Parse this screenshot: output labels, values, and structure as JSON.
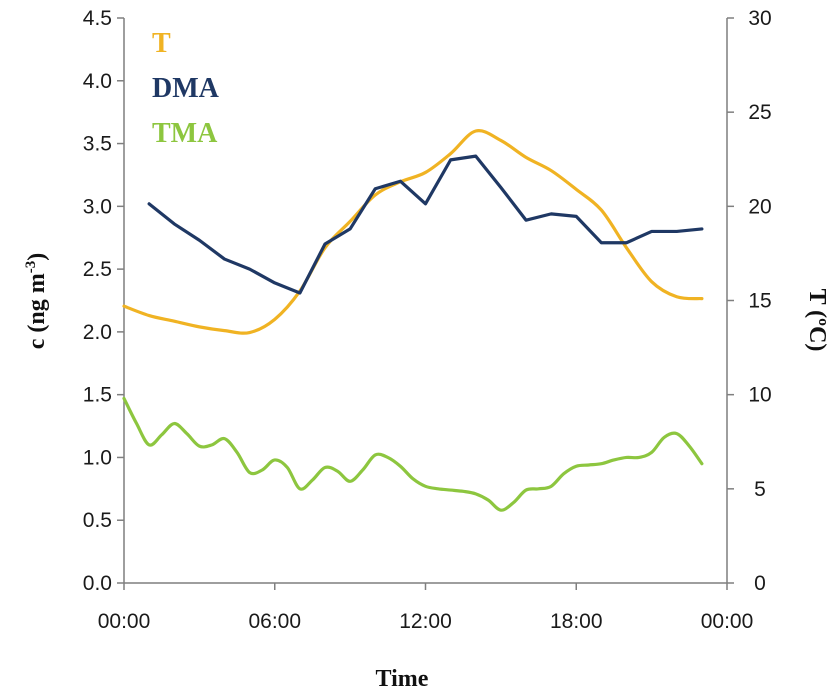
{
  "chart_data": {
    "type": "line",
    "title": "",
    "xlabel": "Time",
    "ylabel_left": "c (ng m⁻³)",
    "ylabel_left_parts": {
      "base": "c (ng m",
      "sup": "-3",
      "close": ")"
    },
    "ylabel_right": "T (ºC)",
    "x_unit": "hours",
    "xlim": [
      0,
      24
    ],
    "x_ticks": [
      0,
      6,
      12,
      18,
      24
    ],
    "x_tick_labels": [
      "00:00",
      "06:00",
      "12:00",
      "18:00",
      "00:00"
    ],
    "ylim_left": [
      0,
      4.5
    ],
    "y_ticks_left": [
      0,
      0.5,
      1,
      1.5,
      2,
      2.5,
      3,
      3.5,
      4,
      4.5
    ],
    "y_tick_labels_left": [
      "0.0",
      "0.5",
      "1.0",
      "1.5",
      "2.0",
      "2.5",
      "3.0",
      "3.5",
      "4.0",
      "4.5"
    ],
    "ylim_right": [
      0,
      30
    ],
    "y_ticks_right": [
      0,
      5,
      10,
      15,
      20,
      25,
      30
    ],
    "y_tick_labels_right": [
      "0",
      "5",
      "10",
      "15",
      "20",
      "25",
      "30"
    ],
    "grid": false,
    "legend_position": "top-left",
    "series": [
      {
        "name": "T",
        "axis": "right",
        "color": "#f0b323",
        "smooth": true,
        "x": [
          0,
          1,
          2,
          3,
          4,
          5,
          6,
          7,
          8,
          9,
          10,
          11,
          12,
          13,
          14,
          15,
          16,
          17,
          18,
          19,
          20,
          21,
          22,
          23
        ],
        "y": [
          14.7,
          14.2,
          13.9,
          13.6,
          13.4,
          13.3,
          14.0,
          15.5,
          17.8,
          19.2,
          20.6,
          21.3,
          21.8,
          22.8,
          24.0,
          23.5,
          22.6,
          21.9,
          20.9,
          19.8,
          17.8,
          16.0,
          15.2,
          15.1
        ]
      },
      {
        "name": "DMA",
        "axis": "left",
        "color": "#1f3864",
        "smooth": false,
        "x": [
          1,
          2,
          3,
          4,
          5,
          6,
          7,
          8,
          9,
          10,
          11,
          12,
          13,
          14,
          15,
          16,
          17,
          18,
          19,
          20,
          21,
          22,
          23
        ],
        "y": [
          3.02,
          2.86,
          2.73,
          2.58,
          2.5,
          2.39,
          2.31,
          2.7,
          2.82,
          3.14,
          3.2,
          3.02,
          3.37,
          3.4,
          3.15,
          2.89,
          2.94,
          2.92,
          2.71,
          2.71,
          2.8,
          2.8,
          2.82
        ]
      },
      {
        "name": "TMA",
        "axis": "left",
        "color": "#8dc63f",
        "smooth": true,
        "x": [
          0,
          0.5,
          1,
          1.5,
          2,
          2.5,
          3,
          3.5,
          4,
          4.5,
          5,
          5.5,
          6,
          6.5,
          7,
          7.5,
          8,
          8.5,
          9,
          9.5,
          10,
          10.5,
          11,
          11.5,
          12,
          12.5,
          13,
          13.5,
          14,
          14.5,
          15,
          15.5,
          16,
          16.5,
          17,
          17.5,
          18,
          18.5,
          19,
          19.5,
          20,
          20.5,
          21,
          21.5,
          22,
          22.5,
          23
        ],
        "y": [
          1.47,
          1.27,
          1.1,
          1.18,
          1.27,
          1.19,
          1.09,
          1.1,
          1.15,
          1.04,
          0.88,
          0.9,
          0.98,
          0.92,
          0.75,
          0.82,
          0.92,
          0.89,
          0.81,
          0.9,
          1.02,
          1.0,
          0.93,
          0.83,
          0.77,
          0.75,
          0.74,
          0.73,
          0.71,
          0.66,
          0.58,
          0.64,
          0.74,
          0.75,
          0.77,
          0.87,
          0.93,
          0.94,
          0.95,
          0.98,
          1.0,
          1.0,
          1.04,
          1.16,
          1.19,
          1.09,
          0.95
        ]
      }
    ]
  }
}
